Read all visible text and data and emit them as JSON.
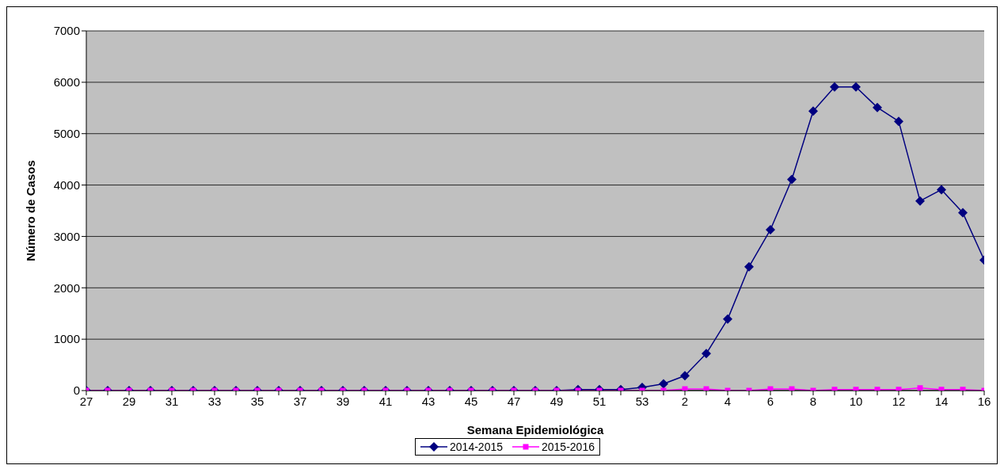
{
  "chart_data": {
    "type": "line",
    "xlabel": "Semana Epidemiológica",
    "ylabel": "Número de Casos",
    "categories": [
      "27",
      null,
      "29",
      null,
      "31",
      null,
      "33",
      null,
      "35",
      null,
      "37",
      null,
      "39",
      null,
      "41",
      null,
      "43",
      null,
      "45",
      null,
      "47",
      null,
      "49",
      null,
      "51",
      null,
      "53",
      null,
      "2",
      null,
      "4",
      null,
      "6",
      null,
      "8",
      null,
      "10",
      null,
      "12",
      null,
      "14",
      null,
      "16"
    ],
    "series": [
      {
        "name": "2014-2015",
        "color": "#000080",
        "marker": "diamond",
        "values": [
          0,
          0,
          0,
          0,
          0,
          0,
          0,
          0,
          0,
          0,
          0,
          0,
          0,
          0,
          0,
          0,
          0,
          0,
          0,
          0,
          0,
          0,
          0,
          20,
          20,
          20,
          60,
          130,
          290,
          720,
          1390,
          2410,
          3130,
          4110,
          5440,
          5910,
          5910,
          5510,
          5240,
          3690,
          3910,
          3460,
          2540
        ]
      },
      {
        "name": "2015-2016",
        "color": "#ff00ff",
        "marker": "square",
        "values": [
          0,
          0,
          0,
          0,
          0,
          0,
          0,
          0,
          0,
          0,
          0,
          0,
          0,
          0,
          0,
          0,
          0,
          0,
          0,
          0,
          0,
          0,
          0,
          0,
          0,
          0,
          0,
          0,
          30,
          30,
          0,
          0,
          30,
          30,
          0,
          20,
          20,
          20,
          20,
          50,
          20,
          20,
          0
        ]
      }
    ],
    "ylim": [
      0,
      7000
    ],
    "yticks": [
      0,
      1000,
      2000,
      3000,
      4000,
      5000,
      6000,
      7000
    ],
    "grid": "y",
    "legend": "bottom",
    "line_style": "solid"
  }
}
